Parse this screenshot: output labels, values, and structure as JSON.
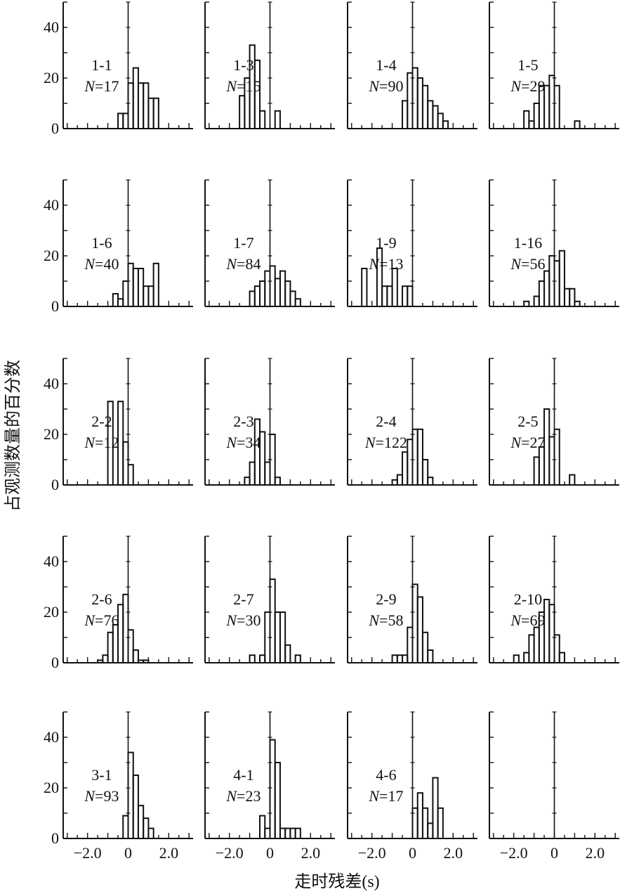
{
  "figure": {
    "ylabel": "占观测数量的百分数",
    "xlabel": "走时残差(s)"
  },
  "axis": {
    "x_range": [
      -3.2,
      3.2
    ],
    "y_range": [
      0,
      50
    ],
    "x_ticks": [
      -2.0,
      0,
      2.0
    ],
    "x_tick_labels": [
      "−2.0",
      "0",
      "2.0"
    ],
    "y_ticks": [
      0,
      20,
      40
    ],
    "y_tick_labels": [
      "0",
      "20",
      "40"
    ],
    "n_prefix": "N=",
    "bin_width": 0.25
  },
  "chart_data": [
    {
      "type": "bar",
      "title": "1-1",
      "n": "17",
      "bin_start": -0.5,
      "bin_width": 0.25,
      "values": [
        6,
        6,
        18,
        24,
        18,
        18,
        12,
        12
      ]
    },
    {
      "type": "bar",
      "title": "1-3",
      "n": "15",
      "bin_start": -1.5,
      "bin_width": 0.25,
      "values": [
        13,
        20,
        33,
        27,
        7,
        0,
        0,
        7
      ]
    },
    {
      "type": "bar",
      "title": "1-4",
      "n": "90",
      "bin_start": -0.5,
      "bin_width": 0.25,
      "values": [
        11,
        22,
        24,
        20,
        17,
        11,
        9,
        6,
        3
      ]
    },
    {
      "type": "bar",
      "title": "1-5",
      "n": "29",
      "bin_start": -1.5,
      "bin_width": 0.25,
      "values": [
        7,
        3,
        10,
        17,
        17,
        21,
        17,
        0,
        0,
        0,
        3
      ]
    },
    {
      "type": "bar",
      "title": "1-6",
      "n": "40",
      "bin_start": -0.75,
      "bin_width": 0.25,
      "values": [
        5,
        3,
        10,
        17,
        15,
        15,
        8,
        8,
        17
      ]
    },
    {
      "type": "bar",
      "title": "1-7",
      "n": "84",
      "bin_start": -1.0,
      "bin_width": 0.25,
      "values": [
        6,
        8,
        10,
        14,
        16,
        11,
        14,
        10,
        6,
        3
      ]
    },
    {
      "type": "bar",
      "title": "1-9",
      "n": "13",
      "bin_start": -2.5,
      "bin_width": 0.25,
      "values": [
        15,
        0,
        0,
        23,
        8,
        8,
        15,
        0,
        8,
        8
      ]
    },
    {
      "type": "bar",
      "title": "1-16",
      "n": "56",
      "bin_start": -1.5,
      "bin_width": 0.25,
      "values": [
        2,
        0,
        4,
        10,
        14,
        20,
        18,
        22,
        7,
        7,
        2,
        0
      ]
    },
    {
      "type": "bar",
      "title": "2-2",
      "n": "12",
      "bin_start": -1.0,
      "bin_width": 0.25,
      "values": [
        33,
        0,
        33,
        17,
        8
      ]
    },
    {
      "type": "bar",
      "title": "2-3",
      "n": "34",
      "bin_start": -1.25,
      "bin_width": 0.25,
      "values": [
        3,
        9,
        26,
        21,
        9,
        20,
        3
      ]
    },
    {
      "type": "bar",
      "title": "2-4",
      "n": "122",
      "bin_start": -1.0,
      "bin_width": 0.25,
      "values": [
        2,
        4,
        13,
        18,
        22,
        22,
        10,
        3
      ]
    },
    {
      "type": "bar",
      "title": "2-5",
      "n": "27",
      "bin_start": -1.0,
      "bin_width": 0.25,
      "values": [
        11,
        15,
        30,
        19,
        22,
        0,
        0,
        4
      ]
    },
    {
      "type": "bar",
      "title": "2-6",
      "n": "76",
      "bin_start": -1.5,
      "bin_width": 0.25,
      "values": [
        1,
        3,
        12,
        15,
        23,
        27,
        13,
        5,
        1,
        1
      ]
    },
    {
      "type": "bar",
      "title": "2-7",
      "n": "30",
      "bin_start": -1.0,
      "bin_width": 0.25,
      "values": [
        3,
        0,
        3,
        20,
        33,
        20,
        20,
        7,
        0,
        3
      ]
    },
    {
      "type": "bar",
      "title": "2-9",
      "n": "58",
      "bin_start": -1.0,
      "bin_width": 0.25,
      "values": [
        3,
        3,
        3,
        14,
        31,
        26,
        12,
        5
      ]
    },
    {
      "type": "bar",
      "title": "2-10",
      "n": "69",
      "bin_start": -2.0,
      "bin_width": 0.25,
      "values": [
        3,
        0,
        4,
        11,
        14,
        20,
        25,
        23,
        11,
        4
      ]
    },
    {
      "type": "bar",
      "title": "3-1",
      "n": "93",
      "bin_start": -0.25,
      "bin_width": 0.25,
      "values": [
        9,
        34,
        25,
        13,
        8,
        4
      ]
    },
    {
      "type": "bar",
      "title": "4-1",
      "n": "23",
      "bin_start": -0.5,
      "bin_width": 0.25,
      "values": [
        9,
        4,
        39,
        30,
        4,
        4,
        4,
        4
      ]
    },
    {
      "type": "bar",
      "title": "4-6",
      "n": "17",
      "bin_start": 0,
      "bin_width": 0.25,
      "values": [
        12,
        18,
        12,
        6,
        24,
        12
      ]
    },
    {
      "type": "bar",
      "title": "",
      "n": "",
      "bin_start": 0,
      "bin_width": 0.25,
      "values": []
    }
  ]
}
